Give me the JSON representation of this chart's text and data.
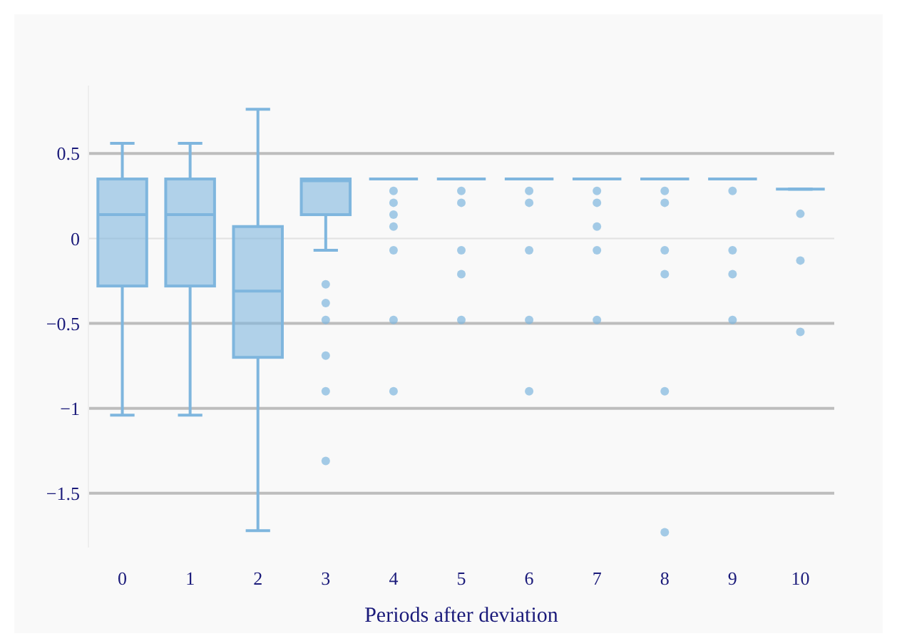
{
  "chart_data": {
    "type": "box",
    "xlabel": "Periods after deviation",
    "categories": [
      "0",
      "1",
      "2",
      "3",
      "4",
      "5",
      "6",
      "7",
      "8",
      "9",
      "10"
    ],
    "ylim": [
      -1.82,
      0.9
    ],
    "yticks": [
      {
        "value": 0.5,
        "label": "0.5"
      },
      {
        "value": 0,
        "label": "0"
      },
      {
        "value": -0.5,
        "label": "−0.5"
      },
      {
        "value": -1,
        "label": "−1"
      },
      {
        "value": -1.5,
        "label": "−1.5"
      }
    ],
    "grid": "y",
    "series": [
      {
        "color": "#7fb6de",
        "boxes": [
          {
            "low": -1.04,
            "q1": -0.28,
            "median": 0.14,
            "q3": 0.35,
            "high": 0.56
          },
          {
            "low": -1.04,
            "q1": -0.28,
            "median": 0.14,
            "q3": 0.35,
            "high": 0.56
          },
          {
            "low": -1.72,
            "q1": -0.7,
            "median": -0.31,
            "q3": 0.07,
            "high": 0.76
          },
          {
            "low": -0.07,
            "q1": 0.14,
            "median": 0.34,
            "q3": 0.35,
            "high": 0.35,
            "outliers": [
              -0.27,
              -0.38,
              -0.48,
              -0.69,
              -0.9,
              -1.31
            ]
          },
          {
            "low": 0.35,
            "q1": 0.35,
            "median": 0.35,
            "q3": 0.35,
            "high": 0.35,
            "outliers": [
              0.28,
              0.21,
              0.14,
              0.07,
              -0.07,
              -0.48,
              -0.9
            ]
          },
          {
            "low": 0.35,
            "q1": 0.35,
            "median": 0.35,
            "q3": 0.35,
            "high": 0.35,
            "outliers": [
              0.28,
              0.21,
              -0.07,
              -0.21,
              -0.48
            ]
          },
          {
            "low": 0.35,
            "q1": 0.35,
            "median": 0.35,
            "q3": 0.35,
            "high": 0.35,
            "outliers": [
              0.28,
              0.21,
              -0.07,
              -0.48,
              -0.9
            ]
          },
          {
            "low": 0.35,
            "q1": 0.35,
            "median": 0.35,
            "q3": 0.35,
            "high": 0.35,
            "outliers": [
              0.28,
              0.21,
              0.07,
              -0.07,
              -0.48
            ]
          },
          {
            "low": 0.35,
            "q1": 0.35,
            "median": 0.35,
            "q3": 0.35,
            "high": 0.35,
            "outliers": [
              0.28,
              0.21,
              -0.07,
              -0.21,
              -0.9,
              -1.73
            ]
          },
          {
            "low": 0.35,
            "q1": 0.35,
            "median": 0.35,
            "q3": 0.35,
            "high": 0.35,
            "outliers": [
              0.28,
              -0.07,
              -0.21,
              -0.48
            ]
          },
          {
            "low": 0.29,
            "q1": 0.29,
            "median": 0.29,
            "q3": 0.29,
            "high": 0.29,
            "outliers": [
              0.145,
              -0.13,
              -0.55
            ]
          }
        ]
      }
    ]
  }
}
